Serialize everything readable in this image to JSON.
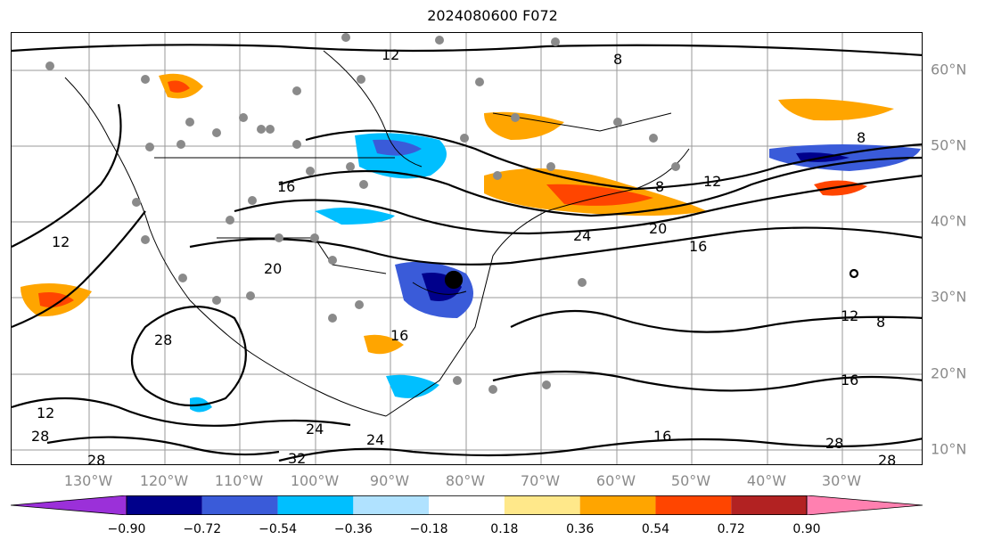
{
  "title": "2024080600 F072",
  "lon_labels": [
    "130°W",
    "120°W",
    "110°W",
    "100°W",
    "90°W",
    "80°W",
    "70°W",
    "60°W",
    "50°W",
    "40°W",
    "30°W"
  ],
  "lat_labels": [
    "60°N",
    "50°N",
    "40°N",
    "30°N",
    "20°N",
    "10°N"
  ],
  "contour_labels": [
    "8",
    "12",
    "16",
    "20",
    "24",
    "28",
    "32"
  ],
  "colorbar": {
    "ticks": [
      "−0.90",
      "−0.72",
      "−0.54",
      "−0.36",
      "−0.18",
      "0.18",
      "0.36",
      "0.54",
      "0.72",
      "0.90"
    ],
    "colors": [
      "#9b30d9",
      "#00008b",
      "#3a5bd9",
      "#00bfff",
      "#b0e2ff",
      "#ffffff",
      "#ffe88a",
      "#ffa500",
      "#ff4500",
      "#b22222",
      "#ff80b0"
    ]
  }
}
